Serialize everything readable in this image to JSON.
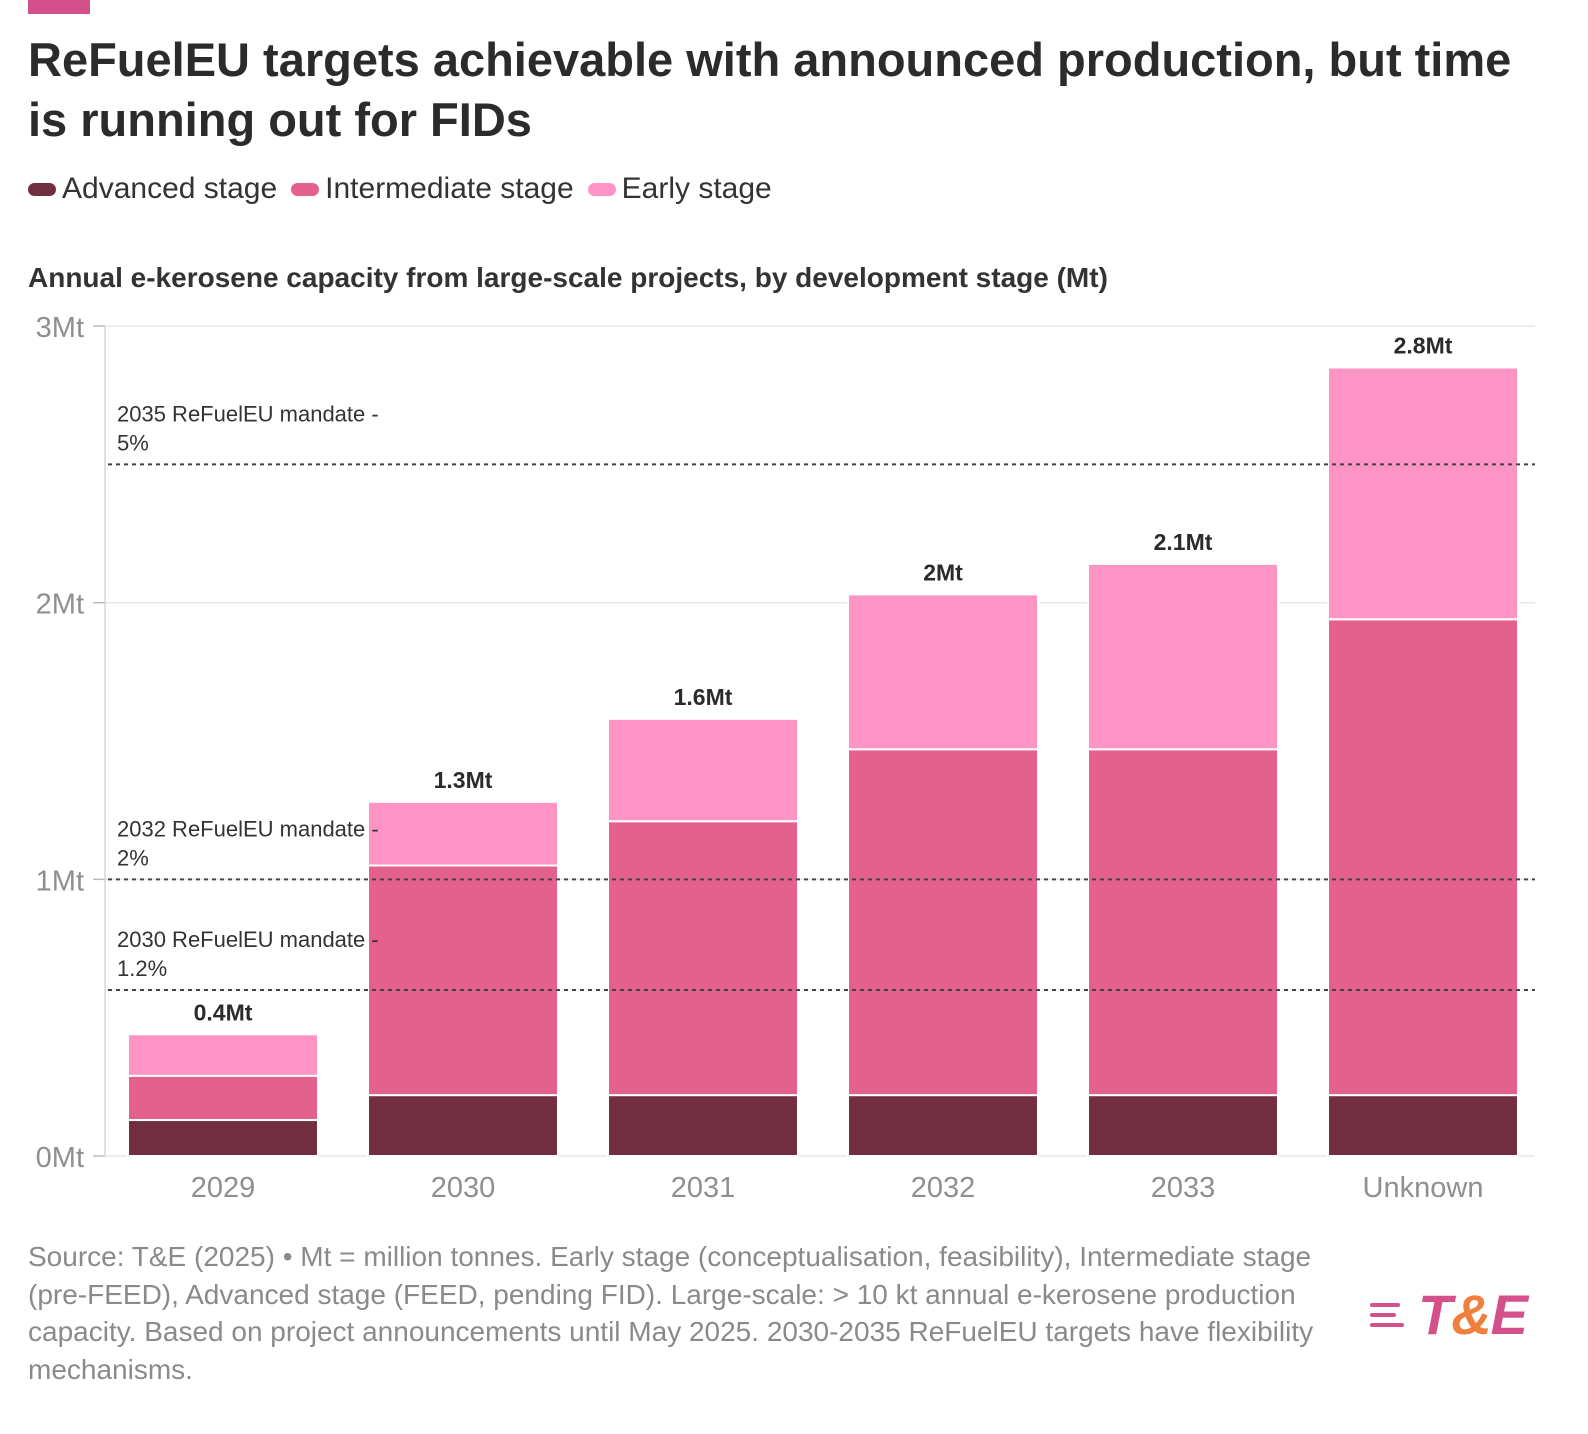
{
  "header": {
    "title": "ReFuelEU targets achievable with announced production, but time is running out for FIDs",
    "subtitle": "Annual e-kerosene capacity from large-scale projects, by development stage (Mt)"
  },
  "legend": {
    "items": [
      {
        "label": "Advanced stage",
        "color": "#722e41"
      },
      {
        "label": "Intermediate stage",
        "color": "#e4608d"
      },
      {
        "label": "Early stage",
        "color": "#fd94c5"
      }
    ]
  },
  "chart_data": {
    "type": "bar",
    "stacked": true,
    "categories": [
      "2029",
      "2030",
      "2031",
      "2032",
      "2033",
      "Unknown"
    ],
    "series": [
      {
        "name": "Advanced stage",
        "color": "#722e41",
        "values": [
          0.13,
          0.22,
          0.22,
          0.22,
          0.22,
          0.22
        ]
      },
      {
        "name": "Intermediate stage",
        "color": "#e4608d",
        "values": [
          0.16,
          0.83,
          0.99,
          1.25,
          1.25,
          1.72
        ]
      },
      {
        "name": "Early stage",
        "color": "#fd94c5",
        "values": [
          0.15,
          0.23,
          0.37,
          0.56,
          0.67,
          0.91
        ]
      }
    ],
    "totals": [
      "0.4Mt",
      "1.3Mt",
      "1.6Mt",
      "2Mt",
      "2.1Mt",
      "2.8Mt"
    ],
    "yticks": [
      {
        "value": 0,
        "label": "0Mt"
      },
      {
        "value": 1,
        "label": "1Mt"
      },
      {
        "value": 2,
        "label": "2Mt"
      },
      {
        "value": 3,
        "label": "3Mt"
      }
    ],
    "ylim": [
      0,
      3
    ],
    "grid": true,
    "legend_position": "top-left",
    "reference_lines": [
      {
        "value": 2.5,
        "label_line1": "2035 ReFuelEU mandate -",
        "label_line2": "5%"
      },
      {
        "value": 1.0,
        "label_line1": "2032 ReFuelEU mandate -",
        "label_line2": "2%"
      },
      {
        "value": 0.6,
        "label_line1": "2030 ReFuelEU mandate -",
        "label_line2": "1.2%"
      }
    ]
  },
  "footer": {
    "note": "Source: T&E (2025) • Mt = million tonnes. Early stage (conceptualisation, feasibility), Intermediate stage (pre-FEED), Advanced stage (FEED, pending FID). Large-scale: > 10 kt annual e-kerosene production capacity. Based on project announcements until May 2025. 2030-2035 ReFuelEU targets have flexibility mechanisms.",
    "logo_left": "T",
    "logo_amp": "&",
    "logo_right": "E"
  },
  "colors": {
    "brand_pink": "#d4508a",
    "brand_orange": "#f07f3c"
  }
}
